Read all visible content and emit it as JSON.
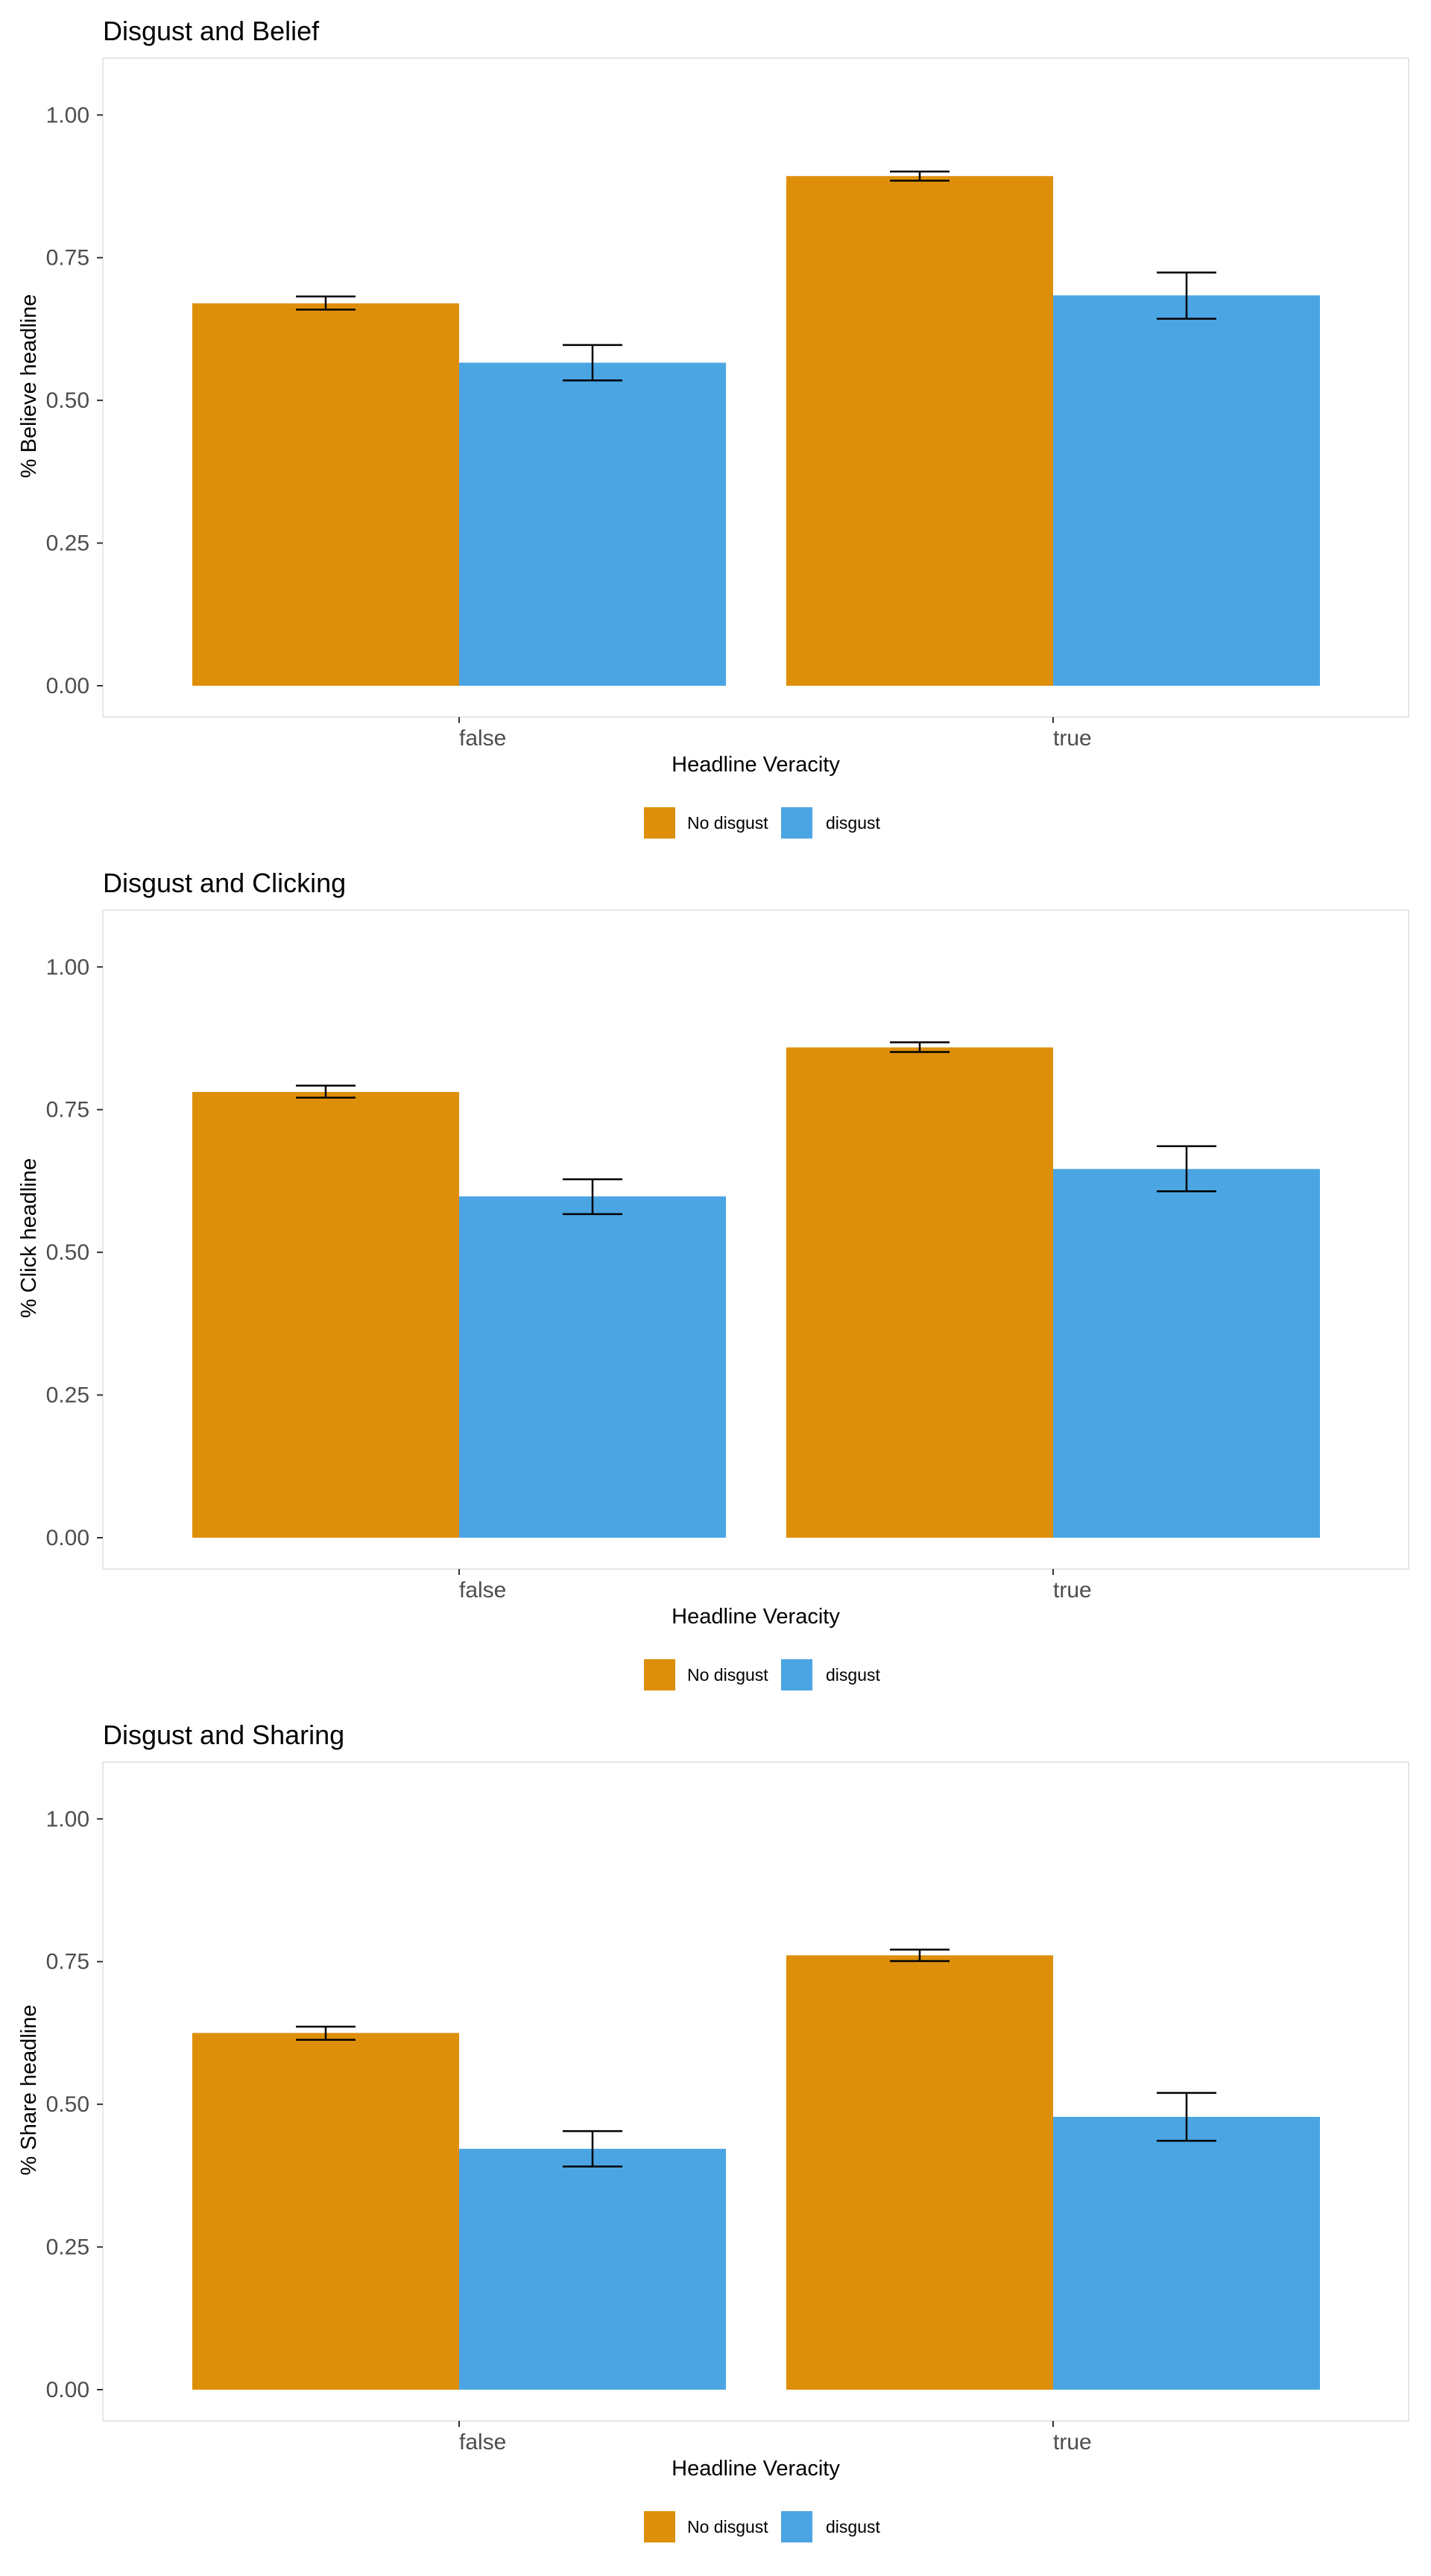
{
  "chart_data": [
    {
      "type": "bar",
      "title": "Disgust and Belief",
      "xlabel": "Headline Veracity",
      "ylabel": "% Believe headline",
      "categories": [
        "false",
        "true"
      ],
      "ylim": [
        0,
        1.05
      ],
      "yticks": [
        "0.00",
        "0.25",
        "0.50",
        "0.75",
        "1.00"
      ],
      "grid": false,
      "legend": "bottom",
      "series": [
        {
          "name": "No disgust",
          "color": "#DE8F0A",
          "values": [
            0.67,
            0.893
          ],
          "err_low": [
            0.659,
            0.885
          ],
          "err_high": [
            0.682,
            0.901
          ]
        },
        {
          "name": "disgust",
          "color": "#4BA5E3",
          "values": [
            0.566,
            0.684
          ],
          "err_low": [
            0.535,
            0.643
          ],
          "err_high": [
            0.597,
            0.724
          ]
        }
      ]
    },
    {
      "type": "bar",
      "title": "Disgust and Clicking",
      "xlabel": "Headline Veracity",
      "ylabel": "% Click headline",
      "categories": [
        "false",
        "true"
      ],
      "ylim": [
        0,
        1.05
      ],
      "yticks": [
        "0.00",
        "0.25",
        "0.50",
        "0.75",
        "1.00"
      ],
      "grid": false,
      "legend": "bottom",
      "series": [
        {
          "name": "No disgust",
          "color": "#DE8F0A",
          "values": [
            0.781,
            0.859
          ],
          "err_low": [
            0.771,
            0.851
          ],
          "err_high": [
            0.792,
            0.868
          ]
        },
        {
          "name": "disgust",
          "color": "#4BA5E3",
          "values": [
            0.598,
            0.646
          ],
          "err_low": [
            0.567,
            0.607
          ],
          "err_high": [
            0.628,
            0.686
          ]
        }
      ]
    },
    {
      "type": "bar",
      "title": "Disgust and Sharing",
      "xlabel": "Headline Veracity",
      "ylabel": "% Share headline",
      "categories": [
        "false",
        "true"
      ],
      "ylim": [
        0,
        1.05
      ],
      "yticks": [
        "0.00",
        "0.25",
        "0.50",
        "0.75",
        "1.00"
      ],
      "grid": false,
      "legend": "bottom",
      "series": [
        {
          "name": "No disgust",
          "color": "#DE8F0A",
          "values": [
            0.625,
            0.761
          ],
          "err_low": [
            0.613,
            0.751
          ],
          "err_high": [
            0.636,
            0.771
          ]
        },
        {
          "name": "disgust",
          "color": "#4BA5E3",
          "values": [
            0.422,
            0.478
          ],
          "err_low": [
            0.391,
            0.436
          ],
          "err_high": [
            0.453,
            0.52
          ]
        }
      ]
    }
  ]
}
